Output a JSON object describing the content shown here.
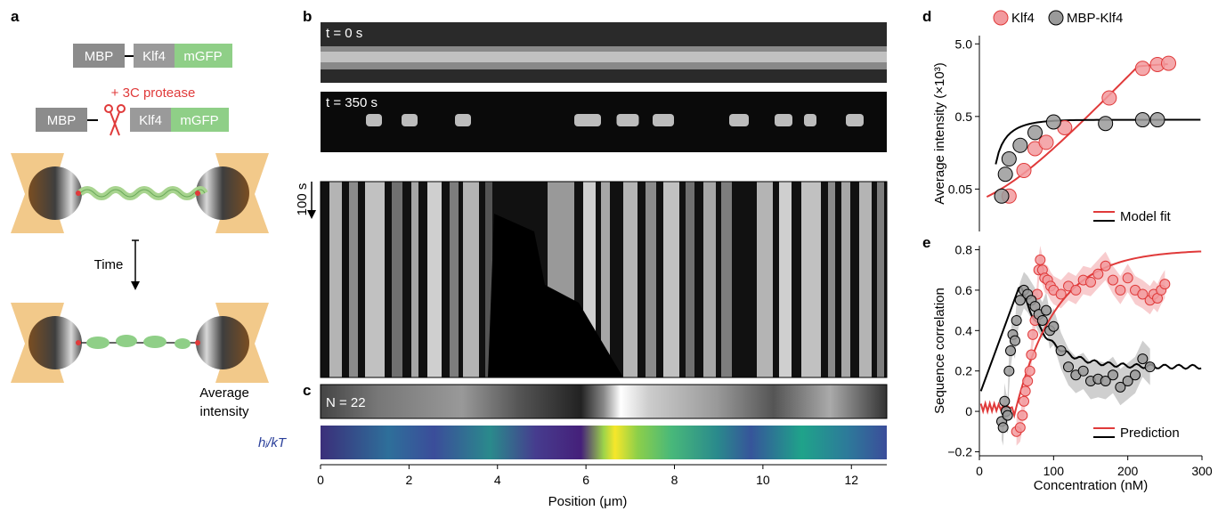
{
  "panels": {
    "a": "a",
    "b": "b",
    "c": "c",
    "d": "d",
    "e": "e"
  },
  "colors": {
    "red": "#e03a3a",
    "pink": "#f29a9e",
    "grey": "#9a9a9a",
    "mbp": "#8c8c8c",
    "klf4": "#9a9a9a",
    "mgfp": "#8fcf87",
    "bead": "#f2c98a"
  },
  "panel_a": {
    "construct1": [
      "MBP",
      "Klf4",
      "mGFP"
    ],
    "protease_label": "+ 3C protease",
    "construct2": [
      "MBP",
      "Klf4",
      "mGFP"
    ],
    "time_label": "Time",
    "average_intensity_label": "Average\nintensity"
  },
  "panel_b": {
    "t0_label": "t = 0 s",
    "t350_label": "t = 350 s",
    "time_scale": "100 s",
    "xlabel": "Position (μm)",
    "xticks": [
      "0",
      "2",
      "4",
      "6",
      "8",
      "10",
      "12"
    ]
  },
  "panel_c": {
    "n_label": "N = 22",
    "energy_label": "hᵢ/kT"
  },
  "chart_data": [
    {
      "type": "scatter",
      "panel": "d",
      "ylabel": "Average intensity (×10³)",
      "yticks": [
        "0.05",
        "0.5",
        "5.0"
      ],
      "yscale": "log",
      "ylim": [
        0.015,
        6.5
      ],
      "xlim": [
        0,
        300
      ],
      "legend": [
        "Klf4",
        "MBP-Klf4"
      ],
      "legend_fit": [
        "Model fit"
      ],
      "series": [
        {
          "name": "Klf4",
          "x": [
            40,
            60,
            75,
            90,
            115,
            175,
            220,
            240,
            255
          ],
          "y": [
            0.04,
            0.09,
            0.18,
            0.22,
            0.35,
            0.9,
            2.3,
            2.6,
            2.7
          ]
        },
        {
          "name": "MBP-Klf4",
          "x": [
            30,
            35,
            40,
            55,
            75,
            100,
            170,
            220,
            240
          ],
          "y": [
            0.04,
            0.08,
            0.13,
            0.2,
            0.3,
            0.42,
            0.4,
            0.45,
            0.45
          ]
        }
      ]
    },
    {
      "type": "scatter",
      "panel": "e",
      "xlabel": "Concentration (nM)",
      "ylabel": "Sequence correlation",
      "xticks": [
        "0",
        "100",
        "200",
        "300"
      ],
      "yticks": [
        "−0.2",
        "0",
        "0.2",
        "0.4",
        "0.6",
        "0.8"
      ],
      "xlim": [
        0,
        300
      ],
      "ylim": [
        -0.22,
        0.82
      ],
      "legend": [
        "Prediction"
      ],
      "series": [
        {
          "name": "Klf4",
          "x": [
            50,
            55,
            58,
            60,
            62,
            65,
            68,
            70,
            72,
            75,
            78,
            80,
            82,
            85,
            88,
            92,
            96,
            100,
            110,
            120,
            130,
            140,
            150,
            160,
            170,
            180,
            190,
            200,
            210,
            220,
            230,
            235,
            240,
            245,
            250
          ],
          "y": [
            -0.1,
            -0.08,
            -0.02,
            0.05,
            0.1,
            0.15,
            0.2,
            0.28,
            0.38,
            0.45,
            0.58,
            0.7,
            0.75,
            0.7,
            0.66,
            0.65,
            0.62,
            0.6,
            0.58,
            0.62,
            0.6,
            0.65,
            0.64,
            0.68,
            0.72,
            0.65,
            0.6,
            0.66,
            0.6,
            0.58,
            0.55,
            0.58,
            0.56,
            0.6,
            0.63
          ]
        },
        {
          "name": "MBP-Klf4",
          "x": [
            30,
            32,
            34,
            36,
            38,
            40,
            42,
            45,
            48,
            50,
            55,
            60,
            65,
            70,
            75,
            80,
            85,
            90,
            95,
            100,
            110,
            120,
            130,
            140,
            150,
            160,
            170,
            180,
            190,
            200,
            210,
            220,
            230
          ],
          "y": [
            -0.05,
            -0.08,
            0.05,
            0.0,
            -0.02,
            0.2,
            0.3,
            0.38,
            0.35,
            0.45,
            0.55,
            0.6,
            0.58,
            0.55,
            0.52,
            0.48,
            0.45,
            0.5,
            0.4,
            0.42,
            0.3,
            0.22,
            0.18,
            0.2,
            0.15,
            0.16,
            0.15,
            0.18,
            0.12,
            0.15,
            0.18,
            0.26,
            0.22
          ]
        }
      ]
    }
  ]
}
